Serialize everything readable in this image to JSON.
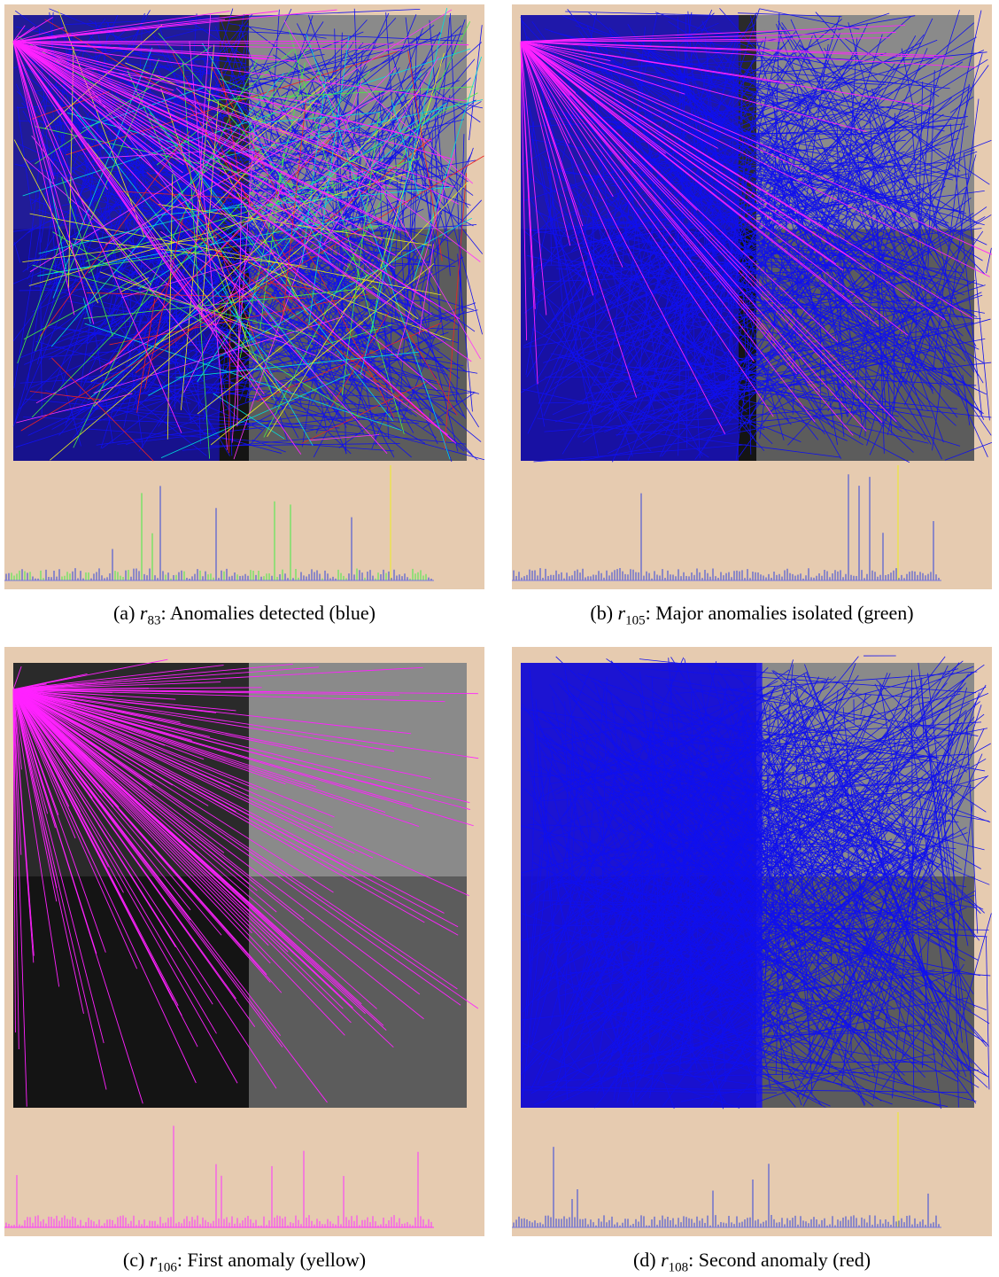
{
  "figure": {
    "panels": [
      {
        "label": "(a)",
        "symbol": "r",
        "subscript": "83",
        "text": ": Anomalies detected (blue)"
      },
      {
        "label": "(b)",
        "symbol": "r",
        "subscript": "105",
        "text": ": Major anomalies isolated (green)"
      },
      {
        "label": "(c)",
        "symbol": "r",
        "subscript": "106",
        "text": ": First anomaly (yellow)"
      },
      {
        "label": "(d)",
        "symbol": "r",
        "subscript": "108",
        "text": ": Second anomaly (red)"
      }
    ]
  }
}
